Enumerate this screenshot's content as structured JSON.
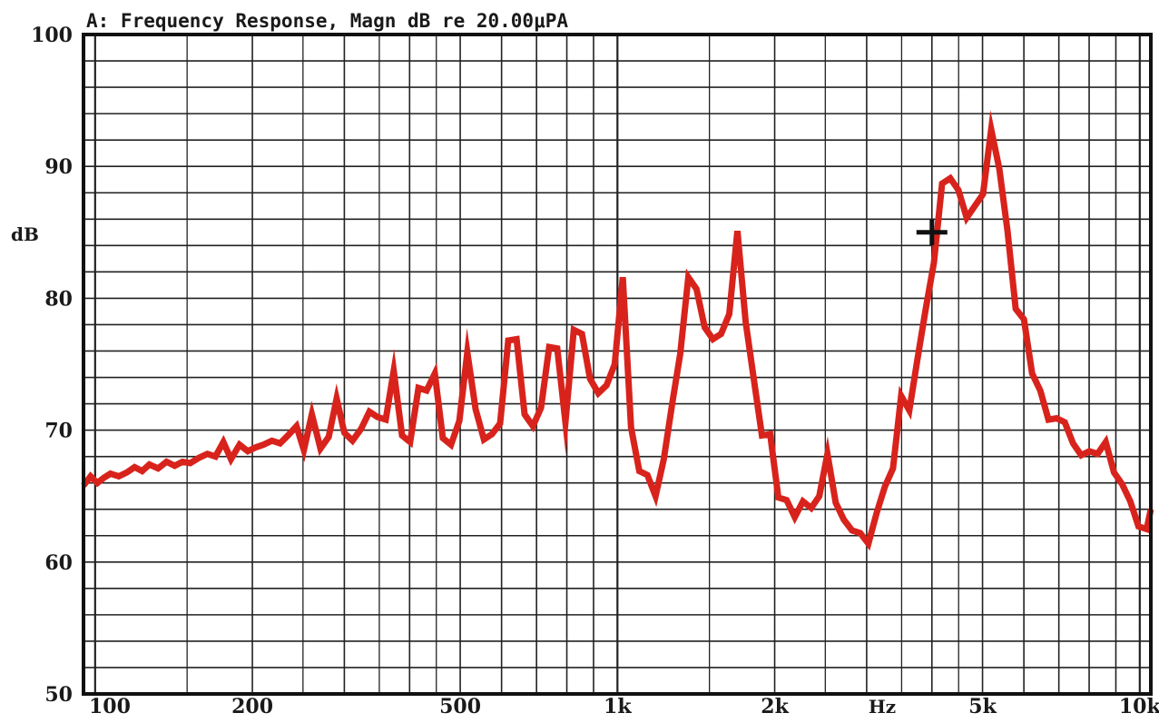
{
  "chart_data": {
    "type": "line",
    "title": "A: Frequency Response, Magn dB re 20.00μPA",
    "ylabel": "dB",
    "xlabel": "Hz",
    "x_scale": "log",
    "xlim": [
      95,
      10500
    ],
    "ylim": [
      50,
      100
    ],
    "y_ticks": [
      50,
      60,
      70,
      80,
      90,
      100
    ],
    "x_ticks": [
      {
        "value": 100,
        "label": "100"
      },
      {
        "value": 200,
        "label": "200"
      },
      {
        "value": 500,
        "label": "500"
      },
      {
        "value": 1000,
        "label": "1k"
      },
      {
        "value": 2000,
        "label": "2k"
      },
      {
        "value": 5000,
        "label": "5k"
      },
      {
        "value": 10000,
        "label": "10k"
      }
    ],
    "grid": true,
    "series": [
      {
        "color": "#d8231c",
        "x": [
          95,
          98,
          101,
          104,
          107,
          111,
          115,
          119,
          123,
          127,
          132,
          137,
          142,
          147,
          152,
          158,
          164,
          170,
          176,
          182,
          189,
          196,
          203,
          210,
          218,
          226,
          234,
          243,
          251,
          260,
          270,
          280,
          290,
          300,
          311,
          323,
          335,
          347,
          360,
          373,
          387,
          401,
          416,
          431,
          447,
          463,
          480,
          498,
          516,
          535,
          555,
          575,
          596,
          618,
          641,
          664,
          689,
          714,
          740,
          767,
          795,
          825,
          855,
          886,
          919,
          953,
          988,
          1024,
          1062,
          1101,
          1141,
          1183,
          1227,
          1272,
          1319,
          1367,
          1417,
          1469,
          1523,
          1579,
          1637,
          1697,
          1760,
          1824,
          1891,
          1961,
          2033,
          2108,
          2185,
          2265,
          2349,
          2435,
          2524,
          2617,
          2713,
          2813,
          2916,
          3023,
          3134,
          3250,
          3369,
          3493,
          3621,
          3754,
          3892,
          4035,
          4183,
          4337,
          4496,
          4662,
          4833,
          5010,
          5194,
          5385,
          5583,
          5788,
          6001,
          6221,
          6450,
          6687,
          6932,
          7187,
          7451,
          7725,
          8008,
          8303,
          8608,
          8924,
          9252,
          9592,
          9944,
          10310,
          10500
        ],
        "y": [
          65.8,
          66.5,
          66.0,
          66.4,
          66.7,
          66.5,
          66.8,
          67.2,
          66.9,
          67.4,
          67.1,
          67.6,
          67.3,
          67.6,
          67.5,
          67.9,
          68.2,
          68.0,
          69.1,
          67.8,
          68.9,
          68.4,
          68.7,
          68.9,
          69.2,
          69.0,
          69.6,
          70.3,
          68.5,
          71.2,
          68.6,
          69.5,
          72.4,
          69.8,
          69.2,
          70.1,
          71.4,
          71.0,
          70.8,
          74.5,
          69.6,
          69.1,
          73.2,
          73.0,
          74.3,
          69.4,
          68.9,
          70.7,
          75.9,
          71.6,
          69.3,
          69.7,
          70.5,
          76.8,
          76.9,
          71.2,
          70.3,
          71.7,
          76.3,
          76.2,
          70.6,
          77.6,
          77.3,
          73.9,
          72.8,
          73.4,
          75.0,
          81.6,
          70.2,
          66.9,
          66.6,
          65.0,
          67.8,
          71.9,
          75.8,
          81.6,
          80.7,
          77.8,
          76.9,
          77.3,
          78.8,
          85.1,
          78.2,
          73.9,
          69.6,
          69.7,
          64.9,
          64.7,
          63.4,
          64.6,
          64.1,
          65.0,
          68.2,
          64.5,
          63.2,
          62.4,
          62.2,
          61.4,
          63.7,
          65.7,
          67.1,
          72.6,
          71.5,
          75.4,
          79.2,
          82.7,
          88.7,
          89.1,
          88.2,
          86.1,
          87.0,
          87.9,
          92.8,
          89.8,
          85.1,
          79.2,
          78.4,
          74.3,
          73.0,
          70.8,
          70.9,
          70.6,
          69.0,
          68.1,
          68.4,
          68.2,
          69.1,
          66.8,
          65.9,
          64.6,
          62.7,
          62.5,
          64.0
        ]
      }
    ],
    "cursor_marker": {
      "x": 4000,
      "y": 85.0
    }
  }
}
